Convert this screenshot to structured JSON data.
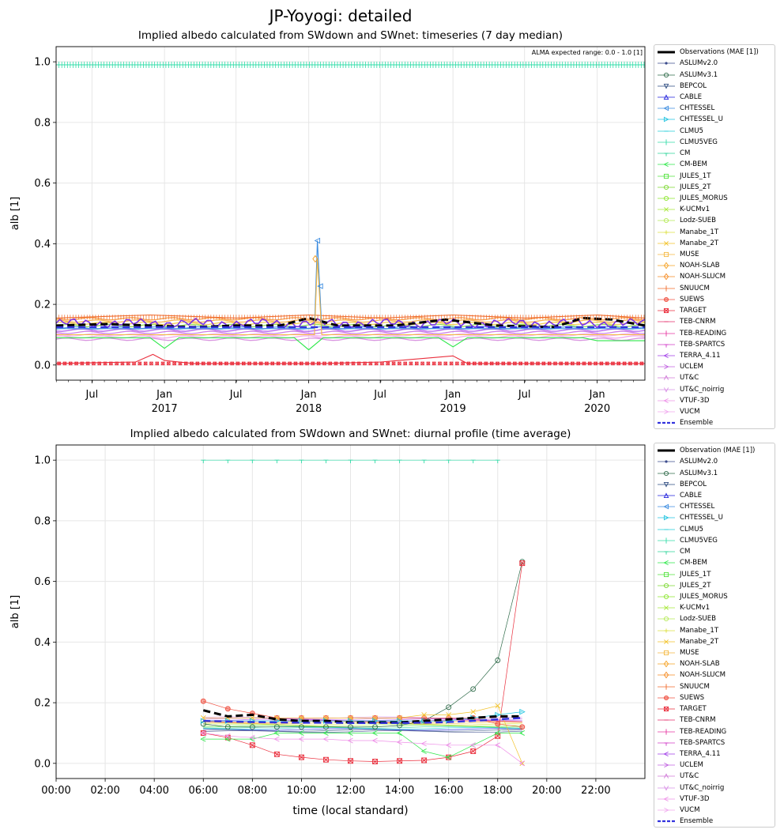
{
  "suptitle": "JP-Yoyogi: detailed",
  "chart_data": [
    {
      "type": "line",
      "title": "Implied albedo calculated from SWdown and SWnet: timeseries (7 day median)",
      "xlabel": "",
      "ylabel": "alb [1]",
      "ylim": [
        -0.05,
        1.05
      ],
      "yticks": [
        "0.0",
        "0.2",
        "0.4",
        "0.6",
        "0.8",
        "1.0"
      ],
      "xticks": [
        {
          "label": "Jul",
          "sub": "",
          "date": "2016-07-01"
        },
        {
          "label": "Jan",
          "sub": "2017",
          "date": "2017-01-01"
        },
        {
          "label": "Jul",
          "sub": "",
          "date": "2017-07-01"
        },
        {
          "label": "Jan",
          "sub": "2018",
          "date": "2018-01-01"
        },
        {
          "label": "Jul",
          "sub": "",
          "date": "2018-07-01"
        },
        {
          "label": "Jan",
          "sub": "2019",
          "date": "2019-01-01"
        },
        {
          "label": "Jul",
          "sub": "",
          "date": "2019-07-01"
        },
        {
          "label": "Jan",
          "sub": "2020",
          "date": "2020-01-01"
        }
      ],
      "xlim": [
        "2016-04-01",
        "2020-05-01"
      ],
      "annotation": "ALMA expected range: 0.0 - 1.0 [1]",
      "grid": true,
      "legend": "outside-right",
      "series": [
        {
          "name": "CLMU5VEG",
          "values": [
            [
              2016.25,
              0.99
            ],
            [
              2020.33,
              0.99
            ]
          ]
        },
        {
          "name": "Observations (MAE [1])",
          "values": [
            [
              2016.25,
              0.13
            ],
            [
              2016.6,
              0.135
            ],
            [
              2016.9,
              0.13
            ],
            [
              2017.2,
              0.125
            ],
            [
              2017.5,
              0.13
            ],
            [
              2017.8,
              0.13
            ],
            [
              2018.0,
              0.155
            ],
            [
              2018.2,
              0.13
            ],
            [
              2018.6,
              0.13
            ],
            [
              2018.95,
              0.15
            ],
            [
              2019.3,
              0.13
            ],
            [
              2019.7,
              0.125
            ],
            [
              2019.9,
              0.155
            ],
            [
              2020.1,
              0.15
            ],
            [
              2020.33,
              0.13
            ]
          ]
        },
        {
          "name": "SNUUCM",
          "values": [
            [
              2016.25,
              0.155
            ],
            [
              2016.9,
              0.165
            ],
            [
              2017.5,
              0.155
            ],
            [
              2018.0,
              0.165
            ],
            [
              2018.5,
              0.155
            ],
            [
              2019.0,
              0.165
            ],
            [
              2019.5,
              0.155
            ],
            [
              2020.0,
              0.165
            ],
            [
              2020.33,
              0.155
            ]
          ]
        },
        {
          "name": "TARGET",
          "values": [
            [
              2016.25,
              0.005
            ],
            [
              2016.8,
              0.01
            ],
            [
              2016.92,
              0.035
            ],
            [
              2017.0,
              0.015
            ],
            [
              2017.2,
              0.005
            ],
            [
              2018.1,
              0.005
            ],
            [
              2018.5,
              0.01
            ],
            [
              2019.0,
              0.03
            ],
            [
              2019.1,
              0.005
            ],
            [
              2020.33,
              0.005
            ]
          ]
        },
        {
          "name": "CHTESSEL",
          "values": [
            [
              2016.25,
              0.12
            ],
            [
              2018.04,
              0.12
            ],
            [
              2018.06,
              0.41
            ],
            [
              2018.09,
              0.12
            ],
            [
              2020.33,
              0.12
            ]
          ]
        },
        {
          "name": "MUSE",
          "values": [
            [
              2016.25,
              0.1
            ],
            [
              2018.04,
              0.1
            ],
            [
              2018.06,
              0.35
            ],
            [
              2018.09,
              0.1
            ],
            [
              2020.33,
              0.1
            ]
          ]
        },
        {
          "name": "CM-BEM",
          "values": [
            [
              2016.25,
              0.09
            ],
            [
              2016.9,
              0.09
            ],
            [
              2017.0,
              0.055
            ],
            [
              2017.1,
              0.09
            ],
            [
              2017.9,
              0.09
            ],
            [
              2018.0,
              0.05
            ],
            [
              2018.1,
              0.09
            ],
            [
              2018.9,
              0.09
            ],
            [
              2019.0,
              0.06
            ],
            [
              2019.1,
              0.09
            ],
            [
              2019.9,
              0.09
            ],
            [
              2020.0,
              0.08
            ],
            [
              2020.33,
              0.08
            ]
          ]
        },
        {
          "name": "Ensemble",
          "values": [
            [
              2016.25,
              0.125
            ],
            [
              2020.33,
              0.125
            ]
          ]
        }
      ]
    },
    {
      "type": "line",
      "title": "Implied albedo calculated from SWdown and SWnet: diurnal profile (time average)",
      "xlabel": "time (local standard)",
      "ylabel": "alb [1]",
      "xlim": [
        0,
        24
      ],
      "ylim": [
        -0.05,
        1.05
      ],
      "yticks": [
        "0.0",
        "0.2",
        "0.4",
        "0.6",
        "0.8",
        "1.0"
      ],
      "xticks": [
        "00:00",
        "02:00",
        "04:00",
        "06:00",
        "08:00",
        "10:00",
        "12:00",
        "14:00",
        "16:00",
        "18:00",
        "20:00",
        "22:00"
      ],
      "grid": true,
      "legend": "outside-right",
      "hours": [
        6,
        7,
        8,
        9,
        10,
        11,
        12,
        13,
        14,
        15,
        16,
        17,
        18,
        19
      ],
      "series": [
        {
          "name": "CLMU5VEG",
          "values": [
            1.0,
            1.0,
            1.0,
            1.0,
            1.0,
            1.0,
            1.0,
            1.0,
            1.0,
            1.0,
            1.0,
            1.0,
            1.0,
            null
          ]
        },
        {
          "name": "ASLUMv3.1",
          "values": [
            0.13,
            0.12,
            0.12,
            0.12,
            0.12,
            0.12,
            0.12,
            0.12,
            0.125,
            0.14,
            0.185,
            0.245,
            0.34,
            0.665
          ]
        },
        {
          "name": "TARGET",
          "values": [
            0.1,
            0.085,
            0.06,
            0.03,
            0.02,
            0.012,
            0.008,
            0.006,
            0.008,
            0.01,
            0.02,
            0.04,
            0.09,
            0.66
          ]
        },
        {
          "name": "SUEWS",
          "values": [
            0.205,
            0.18,
            0.165,
            0.15,
            0.15,
            0.15,
            0.15,
            0.15,
            0.15,
            0.15,
            0.15,
            0.15,
            0.13,
            0.12
          ]
        },
        {
          "name": "Manabe_2T",
          "values": [
            0.15,
            0.15,
            0.15,
            0.15,
            0.15,
            0.15,
            0.15,
            0.15,
            0.15,
            0.16,
            0.16,
            0.17,
            0.19,
            0.0
          ]
        },
        {
          "name": "CM-BEM",
          "values": [
            0.08,
            0.08,
            0.08,
            0.1,
            0.1,
            0.1,
            0.1,
            0.1,
            0.1,
            0.04,
            0.02,
            0.06,
            0.1,
            0.1
          ]
        },
        {
          "name": "CHTESSEL_U",
          "values": [
            0.14,
            0.14,
            0.14,
            0.14,
            0.14,
            0.14,
            0.14,
            0.14,
            0.14,
            0.14,
            0.14,
            0.15,
            0.16,
            0.17
          ]
        },
        {
          "name": "VTUF-3D",
          "values": [
            0.1,
            0.09,
            0.085,
            0.08,
            0.08,
            0.08,
            0.075,
            0.075,
            0.07,
            0.065,
            0.06,
            0.06,
            0.06,
            0.0
          ]
        },
        {
          "name": "Observation (MAE [1])",
          "values": [
            0.175,
            0.155,
            0.16,
            0.145,
            0.14,
            0.14,
            0.135,
            0.135,
            0.135,
            0.14,
            0.145,
            0.15,
            0.155,
            0.155
          ]
        },
        {
          "name": "Ensemble",
          "values": [
            0.14,
            0.138,
            0.136,
            0.135,
            0.134,
            0.134,
            0.133,
            0.133,
            0.133,
            0.134,
            0.136,
            0.14,
            0.145,
            0.15
          ]
        }
      ]
    }
  ],
  "legend1": [
    {
      "name": "Observations (MAE [1])",
      "color": "#000000",
      "marker": "none",
      "dash": true
    },
    {
      "name": "ASLUMv2.0",
      "color": "#3b4b8c",
      "marker": "dot"
    },
    {
      "name": "ASLUMv3.1",
      "color": "#2f6b4a",
      "marker": "circle"
    },
    {
      "name": "BEPCOL",
      "color": "#2e4c80",
      "marker": "tri-down"
    },
    {
      "name": "CABLE",
      "color": "#2222dd",
      "marker": "tri-up"
    },
    {
      "name": "CHTESSEL",
      "color": "#3b8ce0",
      "marker": "tri-left"
    },
    {
      "name": "CHTESSEL_U",
      "color": "#21c4e0",
      "marker": "tri-right"
    },
    {
      "name": "CLMU5",
      "color": "#22ccd8",
      "marker": "dash"
    },
    {
      "name": "CLMU5VEG",
      "color": "#31dca8",
      "marker": "vbar"
    },
    {
      "name": "CM",
      "color": "#2dd49a",
      "marker": "tick"
    },
    {
      "name": "CM-BEM",
      "color": "#2ee84a",
      "marker": "chev-left"
    },
    {
      "name": "JULES_1T",
      "color": "#52e33c",
      "marker": "square"
    },
    {
      "name": "JULES_2T",
      "color": "#7bd82f",
      "marker": "hex"
    },
    {
      "name": "JULES_MORUS",
      "color": "#8be62c",
      "marker": "oct"
    },
    {
      "name": "K-UCMv1",
      "color": "#a8e83a",
      "marker": "star"
    },
    {
      "name": "Lodz-SUEB",
      "color": "#b4ea55",
      "marker": "circle"
    },
    {
      "name": "Manabe_1T",
      "color": "#dce040",
      "marker": "plus"
    },
    {
      "name": "Manabe_2T",
      "color": "#f2c22a",
      "marker": "cross"
    },
    {
      "name": "MUSE",
      "color": "#f5b840",
      "marker": "square"
    },
    {
      "name": "NOAH-SLAB",
      "color": "#f5a020",
      "marker": "diamond"
    },
    {
      "name": "NOAH-SLUCM",
      "color": "#f58a20",
      "marker": "thin-diamond"
    },
    {
      "name": "SNUUCM",
      "color": "#f06a2a",
      "marker": "vbar"
    },
    {
      "name": "SUEWS",
      "color": "#f05040",
      "marker": "pentagon"
    },
    {
      "name": "TARGET",
      "color": "#ea2e3c",
      "marker": "xsquare"
    },
    {
      "name": "TEB-CNRM",
      "color": "#e52e6a",
      "marker": "dash"
    },
    {
      "name": "TEB-READING",
      "color": "#e634a0",
      "marker": "vbar"
    },
    {
      "name": "TEB-SPARTCS",
      "color": "#d23cc8",
      "marker": "tick"
    },
    {
      "name": "TERRA_4.11",
      "color": "#a03ee8",
      "marker": "chev-left"
    },
    {
      "name": "UCLEM",
      "color": "#c060e0",
      "marker": "chev-right"
    },
    {
      "name": "UT&C",
      "color": "#d07ad8",
      "marker": "chev-up"
    },
    {
      "name": "UT&C_noirrig",
      "color": "#d890e6",
      "marker": "chev-down"
    },
    {
      "name": "VTUF-3D",
      "color": "#ee90e8",
      "marker": "chev-left"
    },
    {
      "name": "VUCM",
      "color": "#f0a8ee",
      "marker": "chev-right"
    },
    {
      "name": "Ensemble",
      "color": "#3333dd",
      "marker": "none",
      "dash": true
    }
  ],
  "legend2_first": "Observation (MAE [1])"
}
